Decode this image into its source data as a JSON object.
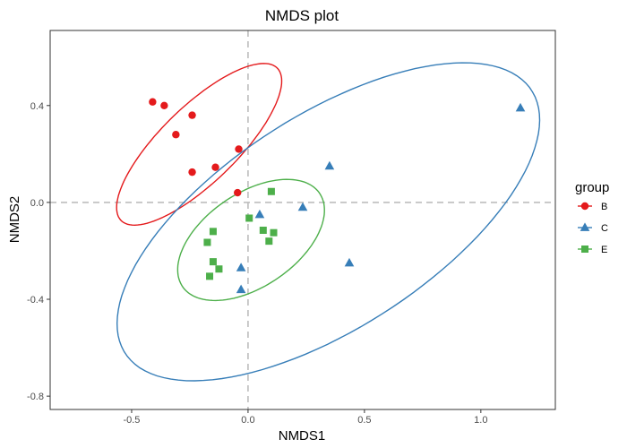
{
  "chart_data": {
    "type": "scatter",
    "title": "NMDS plot",
    "xlabel": "NMDS1",
    "ylabel": "NMDS2",
    "xlim": [
      -0.85,
      1.32
    ],
    "ylim": [
      -0.855,
      0.71
    ],
    "x_ticks": [
      -0.5,
      0.0,
      0.5,
      1.0
    ],
    "x_tick_labels": [
      "-0.5",
      "0.0",
      "0.5",
      "1.0"
    ],
    "y_ticks": [
      -0.8,
      -0.4,
      0.0,
      0.4
    ],
    "y_tick_labels": [
      "-0.8",
      "-0.4",
      "0.0",
      "0.4"
    ],
    "reference_lines": {
      "x": 0.0,
      "y": 0.0,
      "style": "dashed",
      "color": "#bdbdbd"
    },
    "grid": false,
    "legend": {
      "title": "group",
      "placement": "right",
      "entries": [
        "B",
        "C",
        "E"
      ]
    },
    "series": [
      {
        "name": "B",
        "marker": "circle",
        "color": "#e41a1c",
        "points": [
          [
            -0.41,
            0.415
          ],
          [
            -0.36,
            0.4
          ],
          [
            -0.24,
            0.36
          ],
          [
            -0.31,
            0.28
          ],
          [
            -0.04,
            0.22
          ],
          [
            -0.24,
            0.125
          ],
          [
            -0.14,
            0.145
          ],
          [
            -0.045,
            0.04
          ]
        ],
        "ellipse": {
          "center": [
            -0.21,
            0.24
          ],
          "rx": 0.46,
          "ry": 0.16,
          "angle_deg": -42.8
        }
      },
      {
        "name": "C",
        "marker": "triangle",
        "color": "#377eb8",
        "points": [
          [
            1.17,
            0.39
          ],
          [
            0.35,
            0.15
          ],
          [
            0.235,
            -0.02
          ],
          [
            0.05,
            -0.05
          ],
          [
            -0.03,
            -0.27
          ],
          [
            -0.03,
            -0.36
          ],
          [
            0.435,
            -0.25
          ]
        ],
        "ellipse": {
          "center": [
            0.345,
            -0.08
          ],
          "rx": 1.028,
          "ry": 0.445,
          "angle_deg": -31.4
        }
      },
      {
        "name": "E",
        "marker": "square",
        "color": "#4daf4a",
        "points": [
          [
            0.1,
            0.045
          ],
          [
            0.005,
            -0.065
          ],
          [
            0.065,
            -0.115
          ],
          [
            0.11,
            -0.125
          ],
          [
            0.09,
            -0.16
          ],
          [
            -0.15,
            -0.12
          ],
          [
            -0.175,
            -0.165
          ],
          [
            -0.15,
            -0.245
          ],
          [
            -0.125,
            -0.275
          ],
          [
            -0.165,
            -0.305
          ]
        ],
        "ellipse": {
          "center": [
            0.013,
            -0.155
          ],
          "rx": 0.352,
          "ry": 0.195,
          "angle_deg": -32.3
        }
      }
    ]
  }
}
